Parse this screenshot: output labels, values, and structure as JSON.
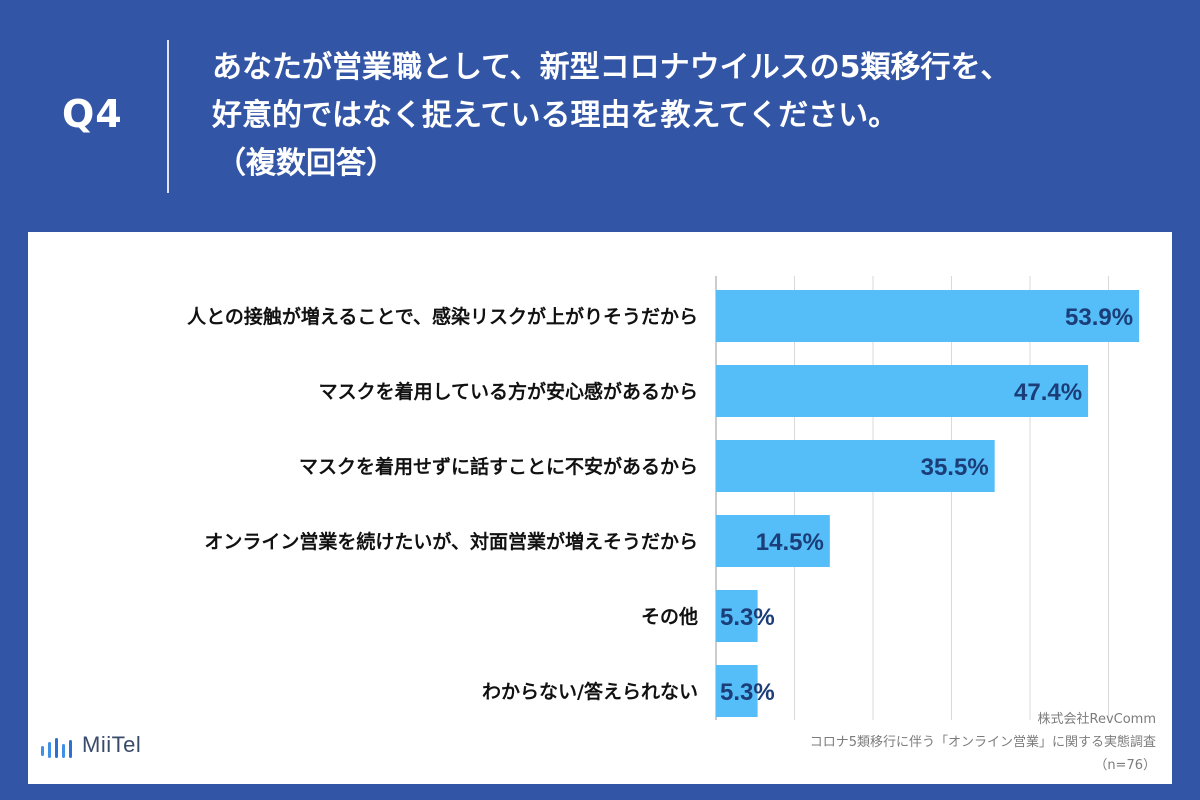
{
  "header": {
    "q_label": "Q4",
    "title_line1": "あなたが営業職として、新型コロナウイルスの5類移行を、",
    "title_line2": "好意的ではなく捉えている理由を教えてください。",
    "title_line3": "（複数回答）"
  },
  "chart_data": {
    "type": "bar",
    "orientation": "horizontal",
    "categories": [
      "人との接触が増えることで、感染リスクが上がりそうだから",
      "マスクを着用している方が安心感があるから",
      "マスクを着用せずに話すことに不安があるから",
      "オンライン営業を続けたいが、対面営業が増えそうだから",
      "その他",
      "わからない/答えられない"
    ],
    "values": [
      53.9,
      47.4,
      35.5,
      14.5,
      5.3,
      5.3
    ],
    "value_labels": [
      "53.9%",
      "47.4%",
      "35.5%",
      "14.5%",
      "5.3%",
      "5.3%"
    ],
    "xlim": [
      0,
      60
    ],
    "grid": true,
    "bar_color": "#55bdf7",
    "label_color": "#1b3d78"
  },
  "brand": {
    "logo_text": "MiiTel"
  },
  "source": {
    "company": "株式会社RevComm",
    "survey": "コロナ5類移行に伴う「オンライン営業」に関する実態調査",
    "sample": "（n=76）"
  },
  "colors": {
    "background": "#3355a6",
    "panel": "#ffffff"
  }
}
